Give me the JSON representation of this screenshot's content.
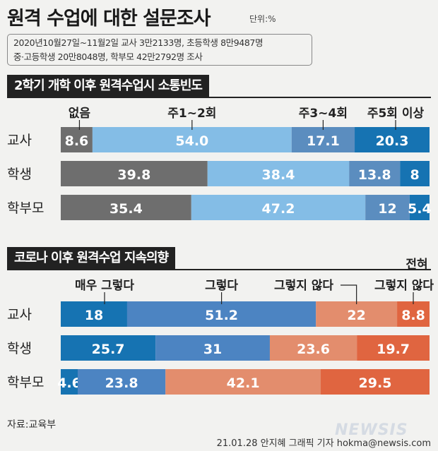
{
  "title": "원격 수업에 대한 설문조사",
  "unit": "단위:%",
  "info": {
    "line1": "2020년10월27일~11월2일 교사 3만2133명, 초등학생 8만9487명",
    "line2": "중·고등학생 20만8048명, 학부모 42만2792명 조사"
  },
  "source": "자료:교육부",
  "credit": "21.01.28 안지혜 그래픽 기자 hokma@newsis.com",
  "watermark": "NEWSIS",
  "colors": {
    "dark_gray": "#6e6e6e",
    "light_blue": "#84bde6",
    "steel_blue": "#5b8dbf",
    "strong_blue": "#1673b2",
    "mid_blue": "#4c84c2",
    "light_coral": "#e38d6d",
    "red_orange": "#e06540"
  },
  "chart_data": [
    {
      "type": "bar",
      "orientation": "horizontal",
      "stacked": true,
      "title": "2학기 개학 이후 원격수업시 소통빈도",
      "categories": [
        "교사",
        "학생",
        "학부모"
      ],
      "series": [
        {
          "name": "없음",
          "values": [
            8.6,
            39.8,
            35.4
          ],
          "color": "#6e6e6e"
        },
        {
          "name": "주1~2회",
          "values": [
            54.0,
            38.4,
            47.2
          ],
          "color": "#84bde6"
        },
        {
          "name": "주3~4회",
          "values": [
            17.1,
            13.8,
            12
          ],
          "color": "#5b8dbf"
        },
        {
          "name": "주5회 이상",
          "values": [
            20.3,
            8,
            5.4
          ],
          "color": "#1673b2"
        }
      ],
      "labels": [
        [
          "8.6",
          "54.0",
          "17.1",
          "20.3"
        ],
        [
          "39.8",
          "38.4",
          "13.8",
          "8"
        ],
        [
          "35.4",
          "47.2",
          "12",
          "5.4"
        ]
      ],
      "legend": "above first bar"
    },
    {
      "type": "bar",
      "orientation": "horizontal",
      "stacked": true,
      "title": "코로나 이후 원격수업 지속의향",
      "categories": [
        "교사",
        "학생",
        "학부모"
      ],
      "series": [
        {
          "name": "매우 그렇다",
          "values": [
            18,
            25.7,
            4.6
          ],
          "color": "#1673b2"
        },
        {
          "name": "그렇다",
          "values": [
            51.2,
            31,
            23.8
          ],
          "color": "#4c84c2"
        },
        {
          "name": "그렇지 않다",
          "values": [
            22,
            23.6,
            42.1
          ],
          "color": "#e38d6d"
        },
        {
          "name": "전혀 그렇지 않다",
          "values": [
            8.8,
            19.7,
            29.5
          ],
          "color": "#e06540"
        }
      ],
      "labels": [
        [
          "18",
          "51.2",
          "22",
          "8.8"
        ],
        [
          "25.7",
          "31",
          "23.6",
          "19.7"
        ],
        [
          "4.6",
          "23.8",
          "42.1",
          "29.5"
        ]
      ],
      "legend_labels": {
        "strongly_no_line1": "전혀",
        "strongly_no_line2": "그렇지 않다"
      },
      "legend": "above first bar"
    }
  ]
}
